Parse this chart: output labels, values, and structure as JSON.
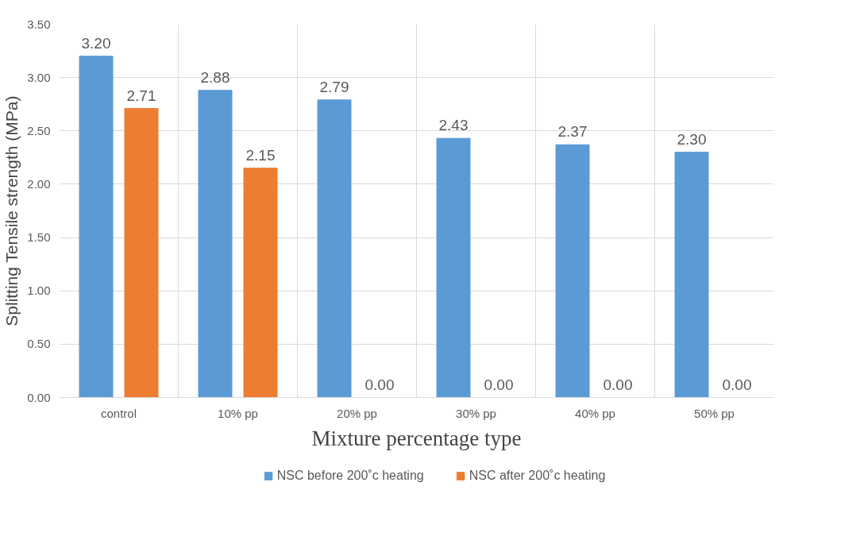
{
  "chart_data": {
    "type": "bar",
    "xlabel": "Mixture percentage type",
    "ylabel": "Splitting Tensile strength (MPa)",
    "categories": [
      "control",
      "10% pp",
      "20% pp",
      "30% pp",
      "40% pp",
      "50% pp"
    ],
    "series": [
      {
        "name": "NSC before 200˚c heating",
        "color": "#5b9bd5",
        "values": [
          3.2,
          2.88,
          2.79,
          2.43,
          2.37,
          2.3
        ],
        "value_labels": [
          "3.20",
          "2.88",
          "2.79",
          "2.43",
          "2.37",
          "2.30"
        ]
      },
      {
        "name": "NSC after 200˚c heating",
        "color": "#ed7d31",
        "values": [
          2.71,
          2.15,
          0.0,
          0.0,
          0.0,
          0.0
        ],
        "value_labels": [
          "2.71",
          "2.15",
          "0.00",
          "0.00",
          "0.00",
          "0.00"
        ]
      }
    ],
    "ylim": [
      0,
      3.5
    ],
    "yticks": [
      {
        "value": 0,
        "label": "0.00"
      },
      {
        "value": 0.5,
        "label": "0.50"
      },
      {
        "value": 1,
        "label": "1.00"
      },
      {
        "value": 1.5,
        "label": "1.50"
      },
      {
        "value": 2,
        "label": "2.00"
      },
      {
        "value": 2.5,
        "label": "2.50"
      },
      {
        "value": 3,
        "label": "3.00"
      },
      {
        "value": 3.5,
        "label": "3.50"
      }
    ],
    "grid": true,
    "legend": "bottom"
  }
}
